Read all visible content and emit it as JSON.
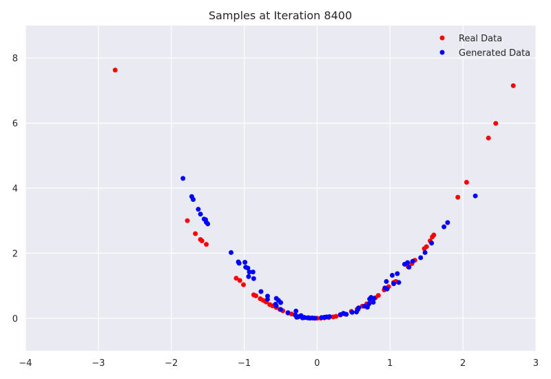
{
  "chart_data": {
    "type": "scatter",
    "title": "Samples at Iteration 8400",
    "xlabel": "",
    "ylabel": "",
    "xlim": [
      -4,
      3
    ],
    "ylim": [
      -1,
      9
    ],
    "xticks": [
      -4,
      -3,
      -2,
      -1,
      0,
      1,
      2,
      3
    ],
    "yticks": [
      0,
      2,
      4,
      6,
      8
    ],
    "grid": true,
    "legend_position": "top-right",
    "background_color": "#EAEAF2",
    "series": [
      {
        "name": "Real Data",
        "color": "#FF0000",
        "points": [
          [
            -2.77,
            7.63
          ],
          [
            -1.78,
            3.0
          ],
          [
            -1.67,
            2.6
          ],
          [
            -1.6,
            2.42
          ],
          [
            -1.58,
            2.38
          ],
          [
            -1.52,
            2.27
          ],
          [
            -1.11,
            1.23
          ],
          [
            -1.06,
            1.16
          ],
          [
            -1.01,
            1.03
          ],
          [
            -0.87,
            0.72
          ],
          [
            -0.84,
            0.69
          ],
          [
            -0.78,
            0.6
          ],
          [
            -0.74,
            0.55
          ],
          [
            -0.7,
            0.5
          ],
          [
            -0.65,
            0.42
          ],
          [
            -0.61,
            0.38
          ],
          [
            -0.56,
            0.33
          ],
          [
            -0.51,
            0.27
          ],
          [
            -0.47,
            0.23
          ],
          [
            -0.4,
            0.16
          ],
          [
            -0.35,
            0.13
          ],
          [
            -0.3,
            0.09
          ],
          [
            -0.24,
            0.06
          ],
          [
            -0.18,
            0.03
          ],
          [
            -0.12,
            0.02
          ],
          [
            -0.05,
            0.0
          ],
          [
            0.0,
            0.0
          ],
          [
            0.05,
            0.0
          ],
          [
            0.1,
            0.01
          ],
          [
            0.16,
            0.02
          ],
          [
            0.22,
            0.04
          ],
          [
            0.26,
            0.06
          ],
          [
            0.32,
            0.1
          ],
          [
            0.38,
            0.13
          ],
          [
            0.47,
            0.21
          ],
          [
            0.55,
            0.28
          ],
          [
            0.62,
            0.37
          ],
          [
            0.68,
            0.44
          ],
          [
            0.73,
            0.5
          ],
          [
            0.8,
            0.63
          ],
          [
            0.84,
            0.7
          ],
          [
            0.92,
            0.87
          ],
          [
            0.98,
            0.97
          ],
          [
            1.05,
            1.1
          ],
          [
            1.08,
            1.13
          ],
          [
            1.25,
            1.58
          ],
          [
            1.3,
            1.68
          ],
          [
            1.34,
            1.78
          ],
          [
            1.47,
            2.14
          ],
          [
            1.5,
            2.2
          ],
          [
            1.55,
            2.38
          ],
          [
            1.58,
            2.5
          ],
          [
            1.6,
            2.56
          ],
          [
            1.93,
            3.72
          ],
          [
            2.05,
            4.18
          ],
          [
            2.35,
            5.54
          ],
          [
            2.45,
            5.99
          ],
          [
            2.69,
            7.15
          ]
        ]
      },
      {
        "name": "Generated Data",
        "color": "#0000FF",
        "points": [
          [
            -1.84,
            4.3
          ],
          [
            -1.72,
            3.74
          ],
          [
            -1.7,
            3.65
          ],
          [
            -1.63,
            3.35
          ],
          [
            -1.6,
            3.2
          ],
          [
            -1.55,
            3.05
          ],
          [
            -1.53,
            3.03
          ],
          [
            -1.52,
            2.95
          ],
          [
            -1.5,
            2.9
          ],
          [
            -1.18,
            2.02
          ],
          [
            -1.08,
            1.73
          ],
          [
            -1.07,
            1.69
          ],
          [
            -0.99,
            1.72
          ],
          [
            -0.98,
            1.57
          ],
          [
            -0.95,
            1.54
          ],
          [
            -0.93,
            1.42
          ],
          [
            -0.94,
            1.28
          ],
          [
            -0.88,
            1.42
          ],
          [
            -0.87,
            1.22
          ],
          [
            -0.77,
            0.82
          ],
          [
            -0.68,
            0.68
          ],
          [
            -0.68,
            0.58
          ],
          [
            -0.57,
            0.43
          ],
          [
            -0.56,
            0.38
          ],
          [
            -0.56,
            0.61
          ],
          [
            -0.53,
            0.55
          ],
          [
            -0.5,
            0.48
          ],
          [
            -0.5,
            0.27
          ],
          [
            -0.4,
            0.17
          ],
          [
            -0.3,
            0.1
          ],
          [
            -0.29,
            0.22
          ],
          [
            -0.28,
            0.03
          ],
          [
            -0.26,
            0.04
          ],
          [
            -0.22,
            0.08
          ],
          [
            -0.2,
            0.01
          ],
          [
            -0.17,
            0.02
          ],
          [
            -0.13,
            0.01
          ],
          [
            -0.1,
            0.0
          ],
          [
            -0.07,
            0.01
          ],
          [
            -0.03,
            0.0
          ],
          [
            0.06,
            0.02
          ],
          [
            0.1,
            0.03
          ],
          [
            0.13,
            0.04
          ],
          [
            0.17,
            0.05
          ],
          [
            0.32,
            0.11
          ],
          [
            0.36,
            0.15
          ],
          [
            0.4,
            0.12
          ],
          [
            0.48,
            0.18
          ],
          [
            0.54,
            0.19
          ],
          [
            0.56,
            0.27
          ],
          [
            0.57,
            0.32
          ],
          [
            0.65,
            0.37
          ],
          [
            0.69,
            0.34
          ],
          [
            0.71,
            0.44
          ],
          [
            0.72,
            0.59
          ],
          [
            0.74,
            0.64
          ],
          [
            0.77,
            0.49
          ],
          [
            0.78,
            0.61
          ],
          [
            0.93,
            0.93
          ],
          [
            0.95,
            1.13
          ],
          [
            0.96,
            0.9
          ],
          [
            1.03,
            1.32
          ],
          [
            1.05,
            1.06
          ],
          [
            1.1,
            1.37
          ],
          [
            1.12,
            1.1
          ],
          [
            1.2,
            1.66
          ],
          [
            1.24,
            1.71
          ],
          [
            1.26,
            1.57
          ],
          [
            1.31,
            1.75
          ],
          [
            1.42,
            1.86
          ],
          [
            1.48,
            2.02
          ],
          [
            1.57,
            2.31
          ],
          [
            1.74,
            2.81
          ],
          [
            1.79,
            2.94
          ],
          [
            2.17,
            3.76
          ]
        ]
      }
    ]
  }
}
